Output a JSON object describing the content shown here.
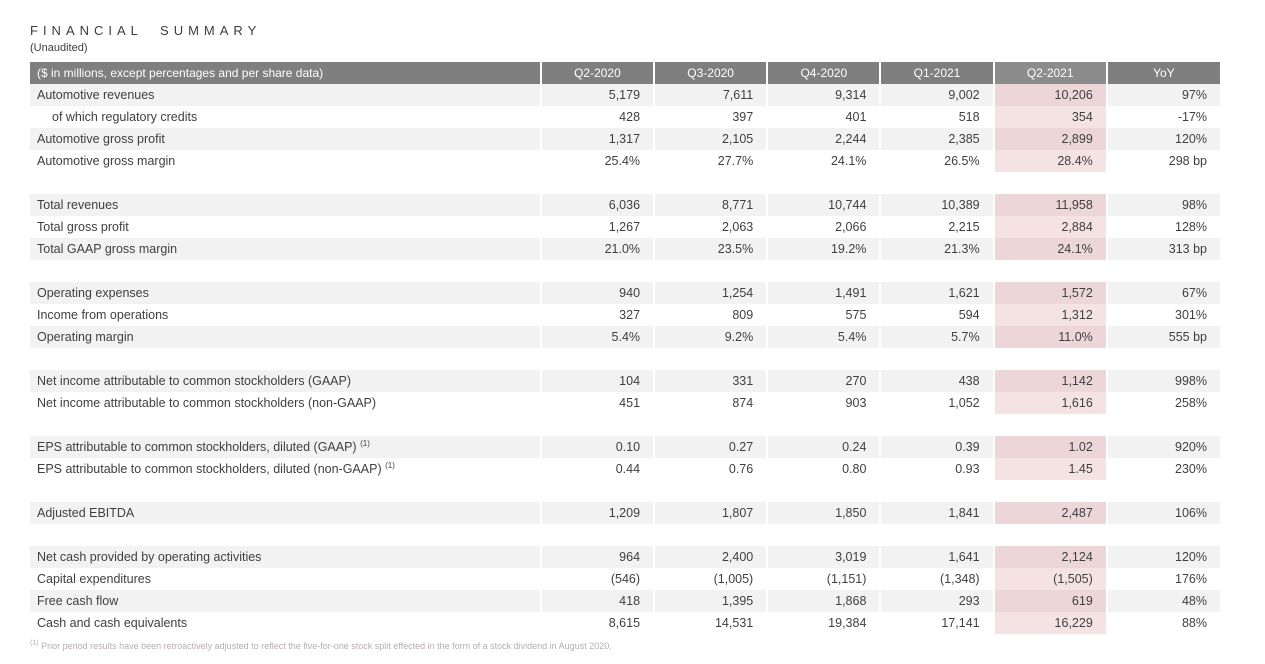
{
  "title": "FINANCIAL SUMMARY",
  "subtitle": "(Unaudited)",
  "colors": {
    "header_bg": "#7f7f7f",
    "header_highlight_bg": "#8c8c8c",
    "header_text": "#ffffff",
    "stripe_gray": "#f2f2f2",
    "stripe_white": "#ffffff",
    "highlight_on_gray": "#ecd6d7",
    "highlight_on_white": "#f5e3e3",
    "body_text": "#3f3f3f",
    "footnote_text": "#b6aeae"
  },
  "table": {
    "header": [
      "($ in millions, except percentages and per share data)",
      "Q2-2020",
      "Q3-2020",
      "Q4-2020",
      "Q1-2021",
      "Q2-2021",
      "YoY"
    ],
    "highlight_column": "Q2-2021",
    "groups": [
      {
        "rows": [
          {
            "label": "Automotive revenues",
            "values": [
              "5,179",
              "7,611",
              "9,314",
              "9,002",
              "10,206",
              "97%"
            ]
          },
          {
            "label": "of which regulatory credits",
            "indent": true,
            "values": [
              "428",
              "397",
              "401",
              "518",
              "354",
              "-17%"
            ]
          },
          {
            "label": "Automotive gross profit",
            "values": [
              "1,317",
              "2,105",
              "2,244",
              "2,385",
              "2,899",
              "120%"
            ]
          },
          {
            "label": "Automotive gross margin",
            "values": [
              "25.4%",
              "27.7%",
              "24.1%",
              "26.5%",
              "28.4%",
              "298 bp"
            ]
          }
        ]
      },
      {
        "rows": [
          {
            "label": "Total revenues",
            "values": [
              "6,036",
              "8,771",
              "10,744",
              "10,389",
              "11,958",
              "98%"
            ]
          },
          {
            "label": "Total gross profit",
            "values": [
              "1,267",
              "2,063",
              "2,066",
              "2,215",
              "2,884",
              "128%"
            ]
          },
          {
            "label": "Total GAAP gross margin",
            "values": [
              "21.0%",
              "23.5%",
              "19.2%",
              "21.3%",
              "24.1%",
              "313 bp"
            ]
          }
        ]
      },
      {
        "rows": [
          {
            "label": "Operating expenses",
            "values": [
              "940",
              "1,254",
              "1,491",
              "1,621",
              "1,572",
              "67%"
            ]
          },
          {
            "label": "Income from operations",
            "values": [
              "327",
              "809",
              "575",
              "594",
              "1,312",
              "301%"
            ]
          },
          {
            "label": "Operating margin",
            "values": [
              "5.4%",
              "9.2%",
              "5.4%",
              "5.7%",
              "11.0%",
              "555 bp"
            ]
          }
        ]
      },
      {
        "rows": [
          {
            "label": "Net income attributable to common stockholders (GAAP)",
            "values": [
              "104",
              "331",
              "270",
              "438",
              "1,142",
              "998%"
            ]
          },
          {
            "label": "Net income attributable to common stockholders (non-GAAP)",
            "values": [
              "451",
              "874",
              "903",
              "1,052",
              "1,616",
              "258%"
            ]
          }
        ]
      },
      {
        "rows": [
          {
            "label": "EPS attributable to common stockholders, diluted (GAAP)",
            "sup": "(1)",
            "values": [
              "0.10",
              "0.27",
              "0.24",
              "0.39",
              "1.02",
              "920%"
            ]
          },
          {
            "label": "EPS attributable to common stockholders, diluted (non-GAAP)",
            "sup": "(1)",
            "values": [
              "0.44",
              "0.76",
              "0.80",
              "0.93",
              "1.45",
              "230%"
            ]
          }
        ]
      },
      {
        "rows": [
          {
            "label": "Adjusted EBITDA",
            "values": [
              "1,209",
              "1,807",
              "1,850",
              "1,841",
              "2,487",
              "106%"
            ]
          }
        ]
      },
      {
        "rows": [
          {
            "label": "Net cash provided by operating activities",
            "values": [
              "964",
              "2,400",
              "3,019",
              "1,641",
              "2,124",
              "120%"
            ]
          },
          {
            "label": "Capital expenditures",
            "values": [
              "(546)",
              "(1,005)",
              "(1,151)",
              "(1,348)",
              "(1,505)",
              "176%"
            ]
          },
          {
            "label": "Free cash flow",
            "values": [
              "418",
              "1,395",
              "1,868",
              "293",
              "619",
              "48%"
            ]
          },
          {
            "label": "Cash and cash equivalents",
            "values": [
              "8,615",
              "14,531",
              "19,384",
              "17,141",
              "16,229",
              "88%"
            ]
          }
        ]
      }
    ]
  },
  "footnote": {
    "marker": "(1)",
    "text": "Prior period results have been retroactively adjusted to reflect the five-for-one stock split effected in the form of a stock dividend in August 2020."
  }
}
